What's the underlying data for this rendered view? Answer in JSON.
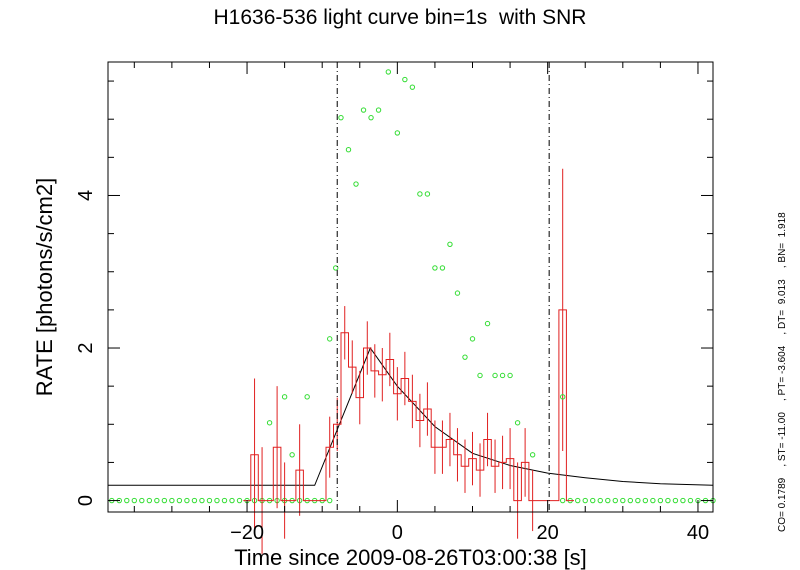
{
  "chart_data": {
    "type": "line",
    "title": "H1636-536 light curve bin=1s  with SNR",
    "xlabel": "Time since 2009-08-26T03:00:38 [s]",
    "ylabel": "RATE [photons/s/cm2]",
    "xlim": [
      -38.5,
      42
    ],
    "ylim": [
      -0.15,
      5.75
    ],
    "xticks": [
      -20,
      0,
      20,
      40
    ],
    "yticks": [
      0,
      2,
      4
    ],
    "grid": false,
    "side_text": "CO= 0.1789    , ST= -11.00    , PT= -3.604    , DT=  9.013    , BN=  1.918",
    "vlines": [
      -8,
      20.2
    ],
    "colors": {
      "rate": "#e02020",
      "snr": "#33dd33",
      "model": "#000000",
      "axis": "#000000"
    },
    "rate": {
      "x": [
        -20,
        -19,
        -18,
        -17,
        -16,
        -15,
        -14,
        -13,
        -12,
        -11,
        -10,
        -9,
        -8,
        -7,
        -6,
        -5,
        -4,
        -3,
        -2,
        -1,
        0,
        1,
        2,
        3,
        4,
        5,
        6,
        7,
        8,
        9,
        10,
        11,
        12,
        13,
        14,
        15,
        16,
        17,
        18,
        19,
        20,
        21,
        22,
        23
      ],
      "y": [
        0,
        0.6,
        0,
        0,
        0.7,
        0,
        0,
        0.4,
        0,
        0,
        0,
        0.7,
        1.0,
        2.2,
        1.75,
        1.35,
        2.0,
        1.7,
        1.65,
        1.85,
        1.4,
        1.6,
        1.3,
        1.05,
        1.2,
        0.7,
        0.7,
        0.8,
        0.6,
        0.45,
        0.55,
        0.4,
        0.8,
        0.45,
        0.5,
        0.55,
        0,
        0.5,
        0,
        0,
        0,
        0,
        2.5,
        0
      ],
      "err": [
        0,
        1.0,
        0.7,
        0,
        0.8,
        0.5,
        0,
        0.6,
        0,
        0,
        0,
        0.4,
        0.35,
        0.35,
        0.35,
        0.35,
        0.35,
        0.35,
        0.35,
        0.35,
        0.35,
        0.35,
        0.35,
        0.35,
        0.35,
        0.35,
        0.35,
        0.35,
        0.35,
        0.35,
        0.35,
        0.35,
        0.35,
        0.35,
        0.35,
        0.4,
        0.5,
        0.45,
        0.4,
        0,
        0,
        0,
        1.85,
        0
      ]
    },
    "snr": {
      "x": [
        -8.2,
        -7.5,
        -6.5,
        -5.5,
        -4.5,
        -3.5,
        -2.5,
        -1.2,
        0,
        1,
        2,
        3,
        4,
        5,
        6,
        7,
        8,
        9,
        10,
        11,
        12,
        13,
        14,
        15,
        16,
        18,
        22,
        -17,
        -15,
        -14,
        -12,
        -9
      ],
      "y": [
        3.05,
        5.02,
        4.6,
        4.15,
        5.12,
        5.02,
        5.12,
        5.62,
        4.82,
        5.52,
        5.42,
        4.02,
        4.02,
        3.05,
        3.05,
        3.36,
        2.72,
        1.88,
        2.12,
        1.64,
        2.32,
        1.64,
        1.64,
        1.64,
        1.02,
        0.6,
        1.36,
        1.02,
        1.36,
        0.6,
        1.36,
        2.12
      ]
    },
    "snr_baseline": {
      "y": 0,
      "x_from": -38,
      "x_to": 42,
      "step": 1
    },
    "model": {
      "x": [
        -38.5,
        -11,
        -3.6,
        0,
        5,
        10,
        15,
        20,
        25,
        30,
        35,
        42
      ],
      "y": [
        0.2,
        0.2,
        2.0,
        1.5,
        0.97,
        0.62,
        0.46,
        0.36,
        0.3,
        0.25,
        0.22,
        0.2
      ]
    }
  }
}
